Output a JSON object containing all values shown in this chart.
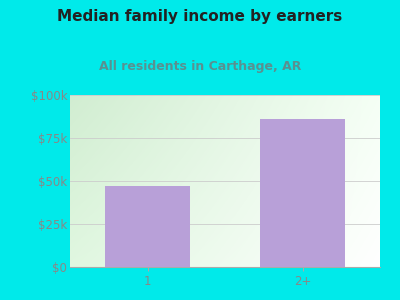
{
  "title": "Median family income by earners",
  "subtitle": "All residents in Carthage, AR",
  "categories": [
    "1",
    "2+"
  ],
  "values": [
    47000,
    86000
  ],
  "bar_color": "#b8a0d8",
  "bg_color": "#00eaea",
  "plot_bg_left": "#d8edd8",
  "plot_bg_right": "#f0f8f0",
  "plot_bg_top": "#d8edd8",
  "plot_bg_bottom": "#e8f8e8",
  "title_color": "#222222",
  "subtitle_color": "#5a9090",
  "tick_color": "#888888",
  "grid_color": "#cccccc",
  "ylim": [
    0,
    100000
  ],
  "yticks": [
    0,
    25000,
    50000,
    75000,
    100000
  ],
  "ytick_labels": [
    "$0",
    "$25k",
    "$50k",
    "$75k",
    "$100k"
  ],
  "title_fontsize": 11,
  "subtitle_fontsize": 9,
  "tick_fontsize": 8.5
}
